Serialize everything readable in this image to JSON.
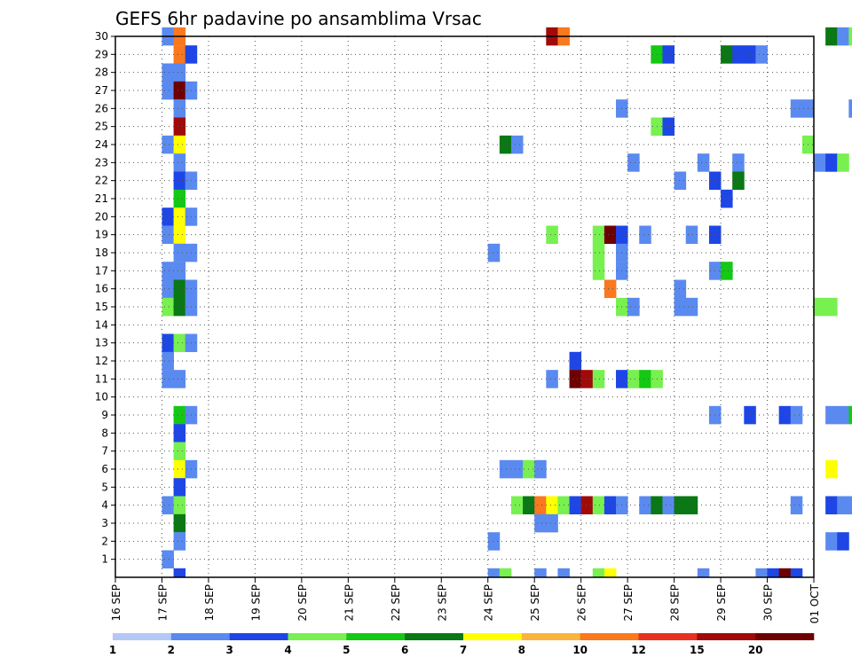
{
  "chart_data": {
    "type": "heatmap",
    "title": "GEFS 6hr padavine po ansamblima Vrsac",
    "x_labels": [
      "16 SEP",
      "17 SEP",
      "18 SEP",
      "19 SEP",
      "20 SEP",
      "21 SEP",
      "22 SEP",
      "23 SEP",
      "24 SEP",
      "25 SEP",
      "26 SEP",
      "27 SEP",
      "28 SEP",
      "29 SEP",
      "30 SEP",
      "01 OCT"
    ],
    "y_labels": [
      1,
      2,
      3,
      4,
      5,
      6,
      7,
      8,
      9,
      10,
      11,
      12,
      13,
      14,
      15,
      16,
      17,
      18,
      19,
      20,
      21,
      22,
      23,
      24,
      25,
      26,
      27,
      28,
      29,
      30
    ],
    "xlim": [
      0,
      60
    ],
    "ylim": [
      0,
      30
    ],
    "grid": true,
    "legend": {
      "position": "bottom",
      "labels": [
        "1",
        "2",
        "3",
        "4",
        "5",
        "6",
        "7",
        "8",
        "10",
        "12",
        "15",
        "20"
      ],
      "colors": [
        "#b4c8f5",
        "#5a8af0",
        "#1e46e6",
        "#78f050",
        "#14c814",
        "#0a7814",
        "#ffff00",
        "#fab43c",
        "#fa781e",
        "#e6321e",
        "#a00a0a",
        "#6e0000"
      ]
    },
    "cells": [
      [
        4,
        30,
        1
      ],
      [
        4,
        28,
        1
      ],
      [
        4,
        27,
        1
      ],
      [
        4,
        24,
        1
      ],
      [
        4,
        20,
        2
      ],
      [
        4,
        19,
        1
      ],
      [
        4,
        17,
        1
      ],
      [
        4,
        16,
        1
      ],
      [
        4,
        15,
        3
      ],
      [
        4,
        13,
        2
      ],
      [
        4,
        12,
        1
      ],
      [
        4,
        11,
        1
      ],
      [
        4,
        4,
        1
      ],
      [
        4,
        1,
        1
      ],
      [
        5,
        30,
        8
      ],
      [
        5,
        29,
        8
      ],
      [
        5,
        28,
        1
      ],
      [
        5,
        27,
        11
      ],
      [
        5,
        26,
        1
      ],
      [
        5,
        25,
        10
      ],
      [
        5,
        24,
        6
      ],
      [
        5,
        23,
        1
      ],
      [
        5,
        22,
        2
      ],
      [
        5,
        21,
        4
      ],
      [
        5,
        20,
        6
      ],
      [
        5,
        19,
        6
      ],
      [
        5,
        18,
        1
      ],
      [
        5,
        17,
        1
      ],
      [
        5,
        16,
        5
      ],
      [
        5,
        15,
        5
      ],
      [
        5,
        13,
        3
      ],
      [
        5,
        11,
        1
      ],
      [
        5,
        9,
        4
      ],
      [
        5,
        8,
        2
      ],
      [
        5,
        7,
        3
      ],
      [
        5,
        6,
        6
      ],
      [
        5,
        5,
        2
      ],
      [
        5,
        4,
        3
      ],
      [
        5,
        3,
        5
      ],
      [
        5,
        2,
        1
      ],
      [
        5,
        0,
        2
      ],
      [
        6,
        29,
        2
      ],
      [
        6,
        27,
        1
      ],
      [
        6,
        22,
        1
      ],
      [
        6,
        20,
        1
      ],
      [
        6,
        18,
        1
      ],
      [
        6,
        16,
        1
      ],
      [
        6,
        15,
        1
      ],
      [
        6,
        13,
        1
      ],
      [
        6,
        9,
        1
      ],
      [
        6,
        6,
        1
      ],
      [
        32,
        18,
        1
      ],
      [
        32,
        2,
        1
      ],
      [
        32,
        0,
        1
      ],
      [
        33,
        24,
        5
      ],
      [
        33,
        6,
        1
      ],
      [
        33,
        0,
        3
      ],
      [
        34,
        24,
        1
      ],
      [
        34,
        6,
        1
      ],
      [
        34,
        4,
        3
      ],
      [
        35,
        6,
        3
      ],
      [
        35,
        4,
        5
      ],
      [
        36,
        6,
        1
      ],
      [
        36,
        4,
        8
      ],
      [
        36,
        3,
        1
      ],
      [
        36,
        0,
        1
      ],
      [
        37,
        30,
        10
      ],
      [
        37,
        19,
        3
      ],
      [
        37,
        11,
        1
      ],
      [
        37,
        4,
        6
      ],
      [
        37,
        3,
        1
      ],
      [
        38,
        30,
        8
      ],
      [
        38,
        4,
        3
      ],
      [
        38,
        0,
        1
      ],
      [
        39,
        12,
        2
      ],
      [
        39,
        11,
        11
      ],
      [
        39,
        4,
        2
      ],
      [
        40,
        11,
        10
      ],
      [
        40,
        4,
        10
      ],
      [
        41,
        19,
        3
      ],
      [
        41,
        18,
        3
      ],
      [
        41,
        17,
        3
      ],
      [
        41,
        11,
        3
      ],
      [
        41,
        4,
        3
      ],
      [
        41,
        0,
        3
      ],
      [
        42,
        19,
        11
      ],
      [
        42,
        16,
        8
      ],
      [
        42,
        4,
        2
      ],
      [
        42,
        0,
        6
      ],
      [
        43,
        26,
        1
      ],
      [
        43,
        19,
        2
      ],
      [
        43,
        18,
        1
      ],
      [
        43,
        17,
        1
      ],
      [
        43,
        15,
        3
      ],
      [
        43,
        11,
        2
      ],
      [
        43,
        4,
        1
      ],
      [
        44,
        23,
        1
      ],
      [
        44,
        15,
        1
      ],
      [
        44,
        11,
        3
      ],
      [
        45,
        19,
        1
      ],
      [
        45,
        11,
        4
      ],
      [
        45,
        4,
        1
      ],
      [
        46,
        29,
        4
      ],
      [
        46,
        25,
        3
      ],
      [
        46,
        11,
        3
      ],
      [
        46,
        4,
        5
      ],
      [
        47,
        29,
        2
      ],
      [
        47,
        25,
        2
      ],
      [
        47,
        4,
        1
      ],
      [
        48,
        22,
        1
      ],
      [
        48,
        16,
        1
      ],
      [
        48,
        15,
        1
      ],
      [
        48,
        4,
        5
      ],
      [
        49,
        19,
        1
      ],
      [
        49,
        15,
        1
      ],
      [
        49,
        4,
        5
      ],
      [
        50,
        23,
        1
      ],
      [
        50,
        0,
        1
      ],
      [
        51,
        22,
        2
      ],
      [
        51,
        19,
        2
      ],
      [
        51,
        17,
        1
      ],
      [
        51,
        9,
        1
      ],
      [
        52,
        29,
        5
      ],
      [
        52,
        21,
        2
      ],
      [
        52,
        17,
        4
      ],
      [
        53,
        29,
        2
      ],
      [
        53,
        23,
        1
      ],
      [
        53,
        22,
        5
      ],
      [
        54,
        29,
        2
      ],
      [
        54,
        9,
        2
      ],
      [
        55,
        29,
        1
      ],
      [
        55,
        0,
        1
      ],
      [
        56,
        0,
        2
      ],
      [
        57,
        9,
        2
      ],
      [
        57,
        0,
        11
      ],
      [
        58,
        26,
        1
      ],
      [
        58,
        9,
        1
      ],
      [
        58,
        4,
        1
      ],
      [
        58,
        0,
        2
      ],
      [
        59,
        26,
        1
      ],
      [
        59,
        24,
        3
      ],
      [
        60,
        23,
        1
      ],
      [
        60,
        15,
        3
      ],
      [
        61,
        30,
        5
      ],
      [
        61,
        23,
        2
      ],
      [
        61,
        15,
        3
      ],
      [
        61,
        9,
        1
      ],
      [
        61,
        6,
        6
      ],
      [
        61,
        4,
        2
      ],
      [
        61,
        2,
        1
      ],
      [
        62,
        30,
        1
      ],
      [
        62,
        23,
        3
      ],
      [
        62,
        9,
        1
      ],
      [
        62,
        4,
        1
      ],
      [
        62,
        2,
        2
      ],
      [
        63,
        30,
        3
      ],
      [
        63,
        26,
        1
      ],
      [
        63,
        9,
        4
      ],
      [
        63,
        4,
        1
      ],
      [
        64,
        27,
        1
      ],
      [
        64,
        11,
        1
      ],
      [
        64,
        9,
        5
      ]
    ]
  }
}
